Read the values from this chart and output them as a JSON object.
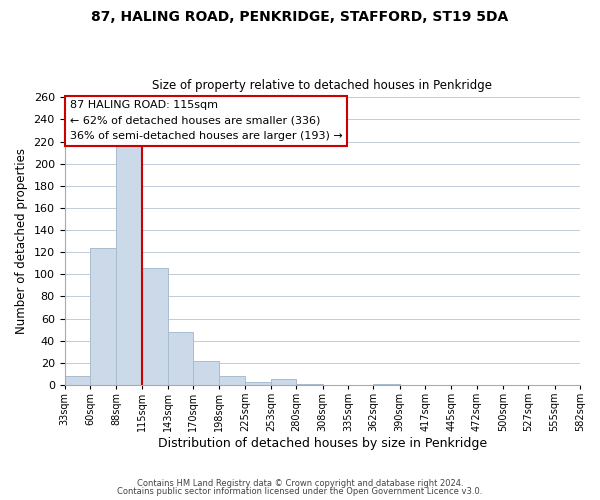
{
  "title1": "87, HALING ROAD, PENKRIDGE, STAFFORD, ST19 5DA",
  "title2": "Size of property relative to detached houses in Penkridge",
  "xlabel": "Distribution of detached houses by size in Penkridge",
  "ylabel": "Number of detached properties",
  "bar_edges": [
    33,
    60,
    88,
    115,
    143,
    170,
    198,
    225,
    253,
    280,
    308,
    335,
    362,
    390,
    417,
    445,
    472,
    500,
    527,
    555,
    582
  ],
  "bar_heights": [
    8,
    124,
    218,
    106,
    48,
    22,
    8,
    3,
    5,
    1,
    0,
    0,
    1,
    0,
    0,
    0,
    0,
    0,
    0,
    0
  ],
  "bar_color": "#ccd9e8",
  "bar_edgecolor": "#a8bdd0",
  "red_line_x": 115,
  "ylim": [
    0,
    260
  ],
  "yticks": [
    0,
    20,
    40,
    60,
    80,
    100,
    120,
    140,
    160,
    180,
    200,
    220,
    240,
    260
  ],
  "xtick_labels": [
    "33sqm",
    "60sqm",
    "88sqm",
    "115sqm",
    "143sqm",
    "170sqm",
    "198sqm",
    "225sqm",
    "253sqm",
    "280sqm",
    "308sqm",
    "335sqm",
    "362sqm",
    "390sqm",
    "417sqm",
    "445sqm",
    "472sqm",
    "500sqm",
    "527sqm",
    "555sqm",
    "582sqm"
  ],
  "annotation_title": "87 HALING ROAD: 115sqm",
  "annotation_line1": "← 62% of detached houses are smaller (336)",
  "annotation_line2": "36% of semi-detached houses are larger (193) →",
  "annotation_box_color": "#ffffff",
  "annotation_box_edgecolor": "#cc0000",
  "footer1": "Contains HM Land Registry data © Crown copyright and database right 2024.",
  "footer2": "Contains public sector information licensed under the Open Government Licence v3.0.",
  "background_color": "#ffffff",
  "grid_color": "#c0ccd8"
}
